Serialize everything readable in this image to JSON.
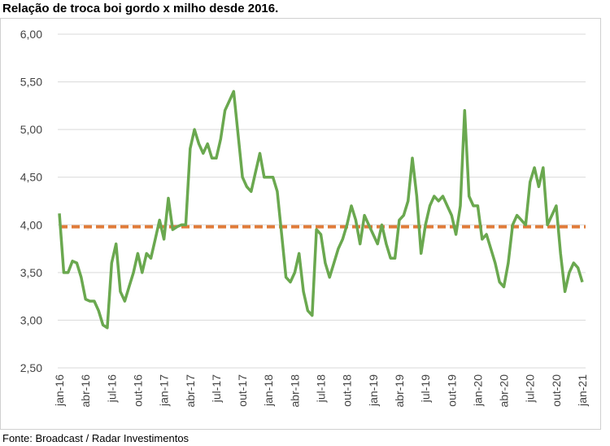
{
  "chart_data": {
    "type": "line",
    "title": "Relação de troca boi gordo x milho desde 2016.",
    "source": "Fonte: Broadcast / Radar Investimentos",
    "categories": [
      "jan-16",
      null,
      null,
      null,
      null,
      null,
      "abr-16",
      null,
      null,
      null,
      null,
      null,
      "jul-16",
      null,
      null,
      null,
      null,
      null,
      "out-16",
      null,
      null,
      null,
      null,
      null,
      "jan-17",
      null,
      null,
      null,
      null,
      null,
      "abr-17",
      null,
      null,
      null,
      null,
      null,
      "jul-17",
      null,
      null,
      null,
      null,
      null,
      "out-17",
      null,
      null,
      null,
      null,
      null,
      "jan-18",
      null,
      null,
      null,
      null,
      null,
      "abr-18",
      null,
      null,
      null,
      null,
      null,
      "jul-18",
      null,
      null,
      null,
      null,
      null,
      "out-18",
      null,
      null,
      null,
      null,
      null,
      "jan-19",
      null,
      null,
      null,
      null,
      null,
      "abr-19",
      null,
      null,
      null,
      null,
      null,
      "jul-19",
      null,
      null,
      null,
      null,
      null,
      "out-19",
      null,
      null,
      null,
      null,
      null,
      "jan-20",
      null,
      null,
      null,
      null,
      null,
      "abr-20",
      null,
      null,
      null,
      null,
      null,
      "jul-20",
      null,
      null,
      null,
      null,
      null,
      "out-20",
      null,
      null,
      null,
      null,
      null,
      "jan-21"
    ],
    "series": [
      {
        "color": "#6aa84f",
        "values": [
          4.12,
          3.5,
          3.5,
          3.62,
          3.6,
          3.45,
          3.22,
          3.2,
          3.2,
          3.1,
          2.95,
          2.92,
          3.6,
          3.8,
          3.3,
          3.2,
          3.35,
          3.5,
          3.7,
          3.5,
          3.7,
          3.65,
          3.85,
          4.05,
          3.85,
          4.28,
          3.95,
          3.98,
          4.0,
          4.0,
          4.8,
          5.0,
          4.85,
          4.75,
          4.85,
          4.7,
          4.7,
          4.9,
          5.2,
          5.3,
          5.4,
          4.95,
          4.5,
          4.4,
          4.35,
          4.55,
          4.75,
          4.5,
          4.5,
          4.5,
          4.35,
          3.9,
          3.45,
          3.4,
          3.5,
          3.7,
          3.3,
          3.1,
          3.05,
          3.95,
          3.9,
          3.6,
          3.45,
          3.6,
          3.75,
          3.85,
          4.0,
          4.2,
          4.05,
          3.8,
          4.1,
          4.0,
          3.9,
          3.8,
          4.0,
          3.8,
          3.65,
          3.65,
          4.05,
          4.1,
          4.25,
          4.7,
          4.3,
          3.7,
          4.0,
          4.2,
          4.3,
          4.25,
          4.3,
          4.2,
          4.1,
          3.9,
          4.2,
          5.2,
          4.3,
          4.2,
          4.2,
          3.85,
          3.9,
          3.75,
          3.6,
          3.4,
          3.35,
          3.6,
          4.0,
          4.1,
          4.05,
          4.0,
          4.45,
          4.6,
          4.4,
          4.6,
          4.0,
          4.1,
          4.2,
          3.7,
          3.3,
          3.5,
          3.6,
          3.55,
          3.4
        ]
      }
    ],
    "reference_line": {
      "value": 3.98,
      "color": "#e07b39",
      "dashed": true
    },
    "ylim": [
      2.5,
      6
    ],
    "yticks": [
      {
        "value": 2.5,
        "label": "2,50"
      },
      {
        "value": 3,
        "label": "3,00"
      },
      {
        "value": 3.5,
        "label": "3,50"
      },
      {
        "value": 4,
        "label": "4,00"
      },
      {
        "value": 4.5,
        "label": "4,50"
      },
      {
        "value": 5,
        "label": "5,00"
      },
      {
        "value": 5.5,
        "label": "5,50"
      },
      {
        "value": 6,
        "label": "6,00"
      }
    ],
    "grid": true
  }
}
